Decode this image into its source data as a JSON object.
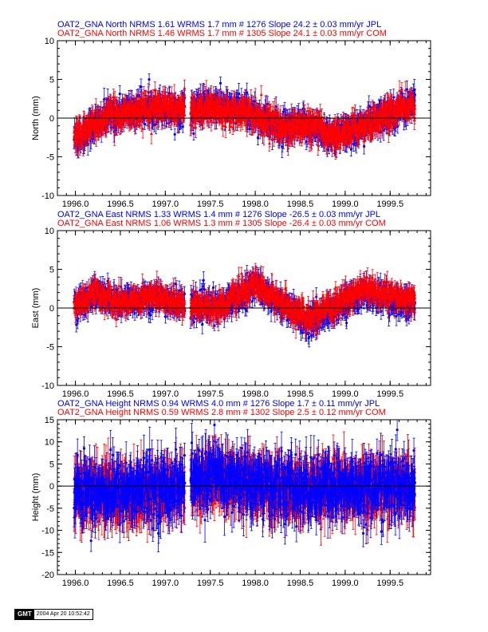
{
  "chart_data": [
    {
      "type": "scatter",
      "legend": [
        {
          "text": "OAT2_GNA North NRMS 1.61 WRMS  1.7 mm # 1276 Slope   24.2 ±  0.03 mm/yr JPL",
          "color": "#0000ff"
        },
        {
          "text": "OAT2_GNA North NRMS 1.46 WRMS  1.7 mm # 1305 Slope   24.1 ±  0.03 mm/yr COM",
          "color": "#ff0000"
        }
      ],
      "ylabel": "North (mm)",
      "xlim": [
        1995.8,
        1999.95
      ],
      "ylim": [
        -10,
        10
      ],
      "xticks": [
        1996.0,
        1996.5,
        1997.0,
        1997.5,
        1998.0,
        1998.5,
        1999.0,
        1999.5
      ],
      "xtick_labels": [
        "1996.0",
        "1996.5",
        "1997.0",
        "1997.5",
        "1998.0",
        "1998.5",
        "1999.0",
        "1999.5"
      ],
      "yticks": [
        -10,
        -5,
        0,
        5,
        10
      ],
      "series": [
        {
          "name": "JPL",
          "color": "#0000ff",
          "marker": "circle",
          "scatter": 1.2,
          "errbar": 1.1,
          "trend": [
            [
              1996.0,
              -2.5
            ],
            [
              1996.4,
              0.5
            ],
            [
              1996.9,
              1.5
            ],
            [
              1997.2,
              1.0
            ],
            [
              1997.5,
              1.5
            ],
            [
              1997.9,
              1.0
            ],
            [
              1998.3,
              -1.5
            ],
            [
              1998.6,
              -1.0
            ],
            [
              1998.9,
              -2.5
            ],
            [
              1999.3,
              -0.5
            ],
            [
              1999.75,
              2.0
            ]
          ]
        },
        {
          "name": "COM",
          "color": "#ff0000",
          "marker": "triangle",
          "scatter": 1.1,
          "errbar": 1.1,
          "trend": [
            [
              1996.0,
              -2.3
            ],
            [
              1996.4,
              0.4
            ],
            [
              1996.9,
              1.4
            ],
            [
              1997.2,
              1.0
            ],
            [
              1997.5,
              1.3
            ],
            [
              1997.9,
              1.0
            ],
            [
              1998.3,
              -1.3
            ],
            [
              1998.6,
              -1.0
            ],
            [
              1998.9,
              -2.3
            ],
            [
              1999.3,
              -0.5
            ],
            [
              1999.75,
              1.8
            ]
          ]
        }
      ],
      "gap": [
        1997.22,
        1997.28
      ]
    },
    {
      "type": "scatter",
      "legend": [
        {
          "text": "OAT2_GNA East NRMS 1.33 WRMS  1.4 mm # 1276 Slope  -26.5 ±  0.03 mm/yr JPL",
          "color": "#0000ff"
        },
        {
          "text": "OAT2_GNA East NRMS 1.06 WRMS  1.3 mm # 1305 Slope  -26.4 ±  0.03 mm/yr COM",
          "color": "#ff0000"
        }
      ],
      "ylabel": "East (mm)",
      "xlim": [
        1995.8,
        1999.95
      ],
      "ylim": [
        -10,
        10
      ],
      "xticks": [
        1996.0,
        1996.5,
        1997.0,
        1997.5,
        1998.0,
        1998.5,
        1999.0,
        1999.5
      ],
      "xtick_labels": [
        "1996.0",
        "1996.5",
        "1997.0",
        "1997.5",
        "1998.0",
        "1998.5",
        "1999.0",
        "1999.5"
      ],
      "yticks": [
        -10,
        -5,
        0,
        5,
        10
      ],
      "series": [
        {
          "name": "JPL",
          "color": "#0000ff",
          "marker": "circle",
          "scatter": 1.1,
          "errbar": 1.0,
          "trend": [
            [
              1996.0,
              0.0
            ],
            [
              1996.2,
              2.0
            ],
            [
              1996.5,
              0.5
            ],
            [
              1996.8,
              1.5
            ],
            [
              1997.2,
              0.5
            ],
            [
              1997.6,
              0.0
            ],
            [
              1998.0,
              3.0
            ],
            [
              1998.3,
              0.5
            ],
            [
              1998.6,
              -2.0
            ],
            [
              1998.9,
              0.0
            ],
            [
              1999.2,
              2.0
            ],
            [
              1999.5,
              1.0
            ],
            [
              1999.75,
              0.5
            ]
          ]
        },
        {
          "name": "COM",
          "color": "#ff0000",
          "marker": "triangle",
          "scatter": 1.0,
          "errbar": 1.0,
          "trend": [
            [
              1996.0,
              0.2
            ],
            [
              1996.2,
              2.0
            ],
            [
              1996.5,
              0.6
            ],
            [
              1996.8,
              1.6
            ],
            [
              1997.2,
              0.6
            ],
            [
              1997.6,
              0.2
            ],
            [
              1998.0,
              3.0
            ],
            [
              1998.3,
              0.6
            ],
            [
              1998.6,
              -1.5
            ],
            [
              1998.9,
              0.5
            ],
            [
              1999.2,
              2.5
            ],
            [
              1999.5,
              1.5
            ],
            [
              1999.75,
              0.8
            ]
          ]
        }
      ],
      "gap": [
        1997.22,
        1997.28
      ]
    },
    {
      "type": "scatter",
      "legend": [
        {
          "text": "OAT2_GNA Height NRMS 0.94 WRMS  4.0 mm # 1276 Slope    1.7 ±  0.11 mm/yr JPL",
          "color": "#0000ff"
        },
        {
          "text": "OAT2_GNA Height NRMS 0.59 WRMS  2.8 mm # 1302 Slope    2.5 ±  0.12 mm/yr COM",
          "color": "#ff0000"
        }
      ],
      "ylabel": "Height (mm)",
      "xlim": [
        1995.8,
        1999.95
      ],
      "ylim": [
        -20,
        15
      ],
      "xticks": [
        1996.0,
        1996.5,
        1997.0,
        1997.5,
        1998.0,
        1998.5,
        1999.0,
        1999.5
      ],
      "xtick_labels": [
        "1996.0",
        "1996.5",
        "1997.0",
        "1997.5",
        "1998.0",
        "1998.5",
        "1999.0",
        "1999.5"
      ],
      "yticks": [
        -20,
        -15,
        -10,
        -5,
        0,
        5,
        10,
        15
      ],
      "series": [
        {
          "name": "COM",
          "color": "#ff0000",
          "marker": "triangle",
          "scatter": 3.5,
          "errbar": 4.5,
          "trend": [
            [
              1996.0,
              -1.5
            ],
            [
              1996.5,
              -2.0
            ],
            [
              1997.0,
              -1.0
            ],
            [
              1997.5,
              1.5
            ],
            [
              1998.0,
              0.0
            ],
            [
              1998.5,
              -1.5
            ],
            [
              1999.0,
              -1.0
            ],
            [
              1999.5,
              0.0
            ],
            [
              1999.75,
              0.0
            ]
          ]
        },
        {
          "name": "JPL",
          "color": "#0000ff",
          "marker": "circle",
          "scatter": 4.2,
          "errbar": 4.0,
          "trend": [
            [
              1996.0,
              -1.0
            ],
            [
              1996.5,
              -1.0
            ],
            [
              1997.0,
              -0.5
            ],
            [
              1997.5,
              2.0
            ],
            [
              1998.0,
              0.5
            ],
            [
              1998.5,
              -1.0
            ],
            [
              1999.0,
              -0.5
            ],
            [
              1999.5,
              0.0
            ],
            [
              1999.75,
              0.0
            ]
          ]
        }
      ],
      "gap": [
        1997.22,
        1997.28
      ]
    }
  ],
  "stamp": {
    "logo": "GMT",
    "date": "2004 Apr 20 10:52:42"
  }
}
